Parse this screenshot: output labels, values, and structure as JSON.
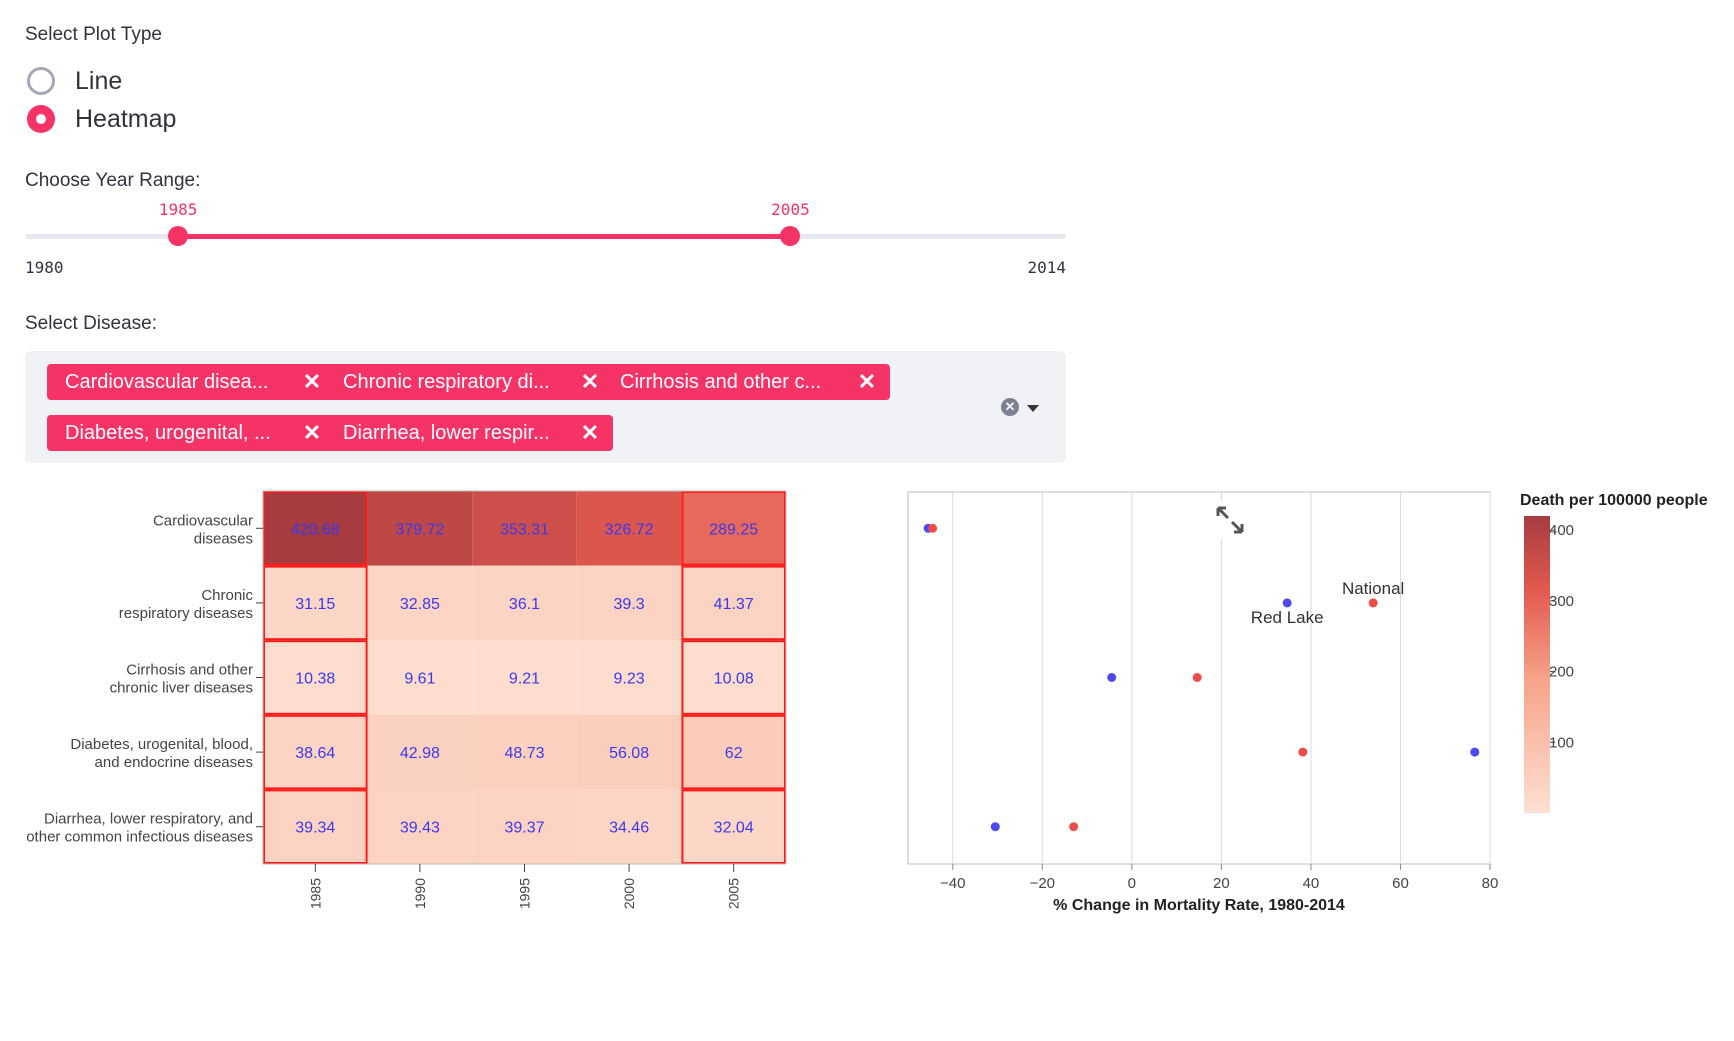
{
  "plot_type": {
    "label": "Select Plot Type",
    "options": [
      "Line",
      "Heatmap"
    ],
    "selected": "Heatmap"
  },
  "year_range": {
    "label": "Choose Year Range:",
    "min": 1980,
    "max": 2014,
    "low": 1985,
    "high": 2005,
    "min_label": "1980",
    "max_label": "2014",
    "low_label": "1985",
    "high_label": "2005"
  },
  "disease_select": {
    "label": "Select Disease:",
    "tags": [
      "Cardiovascular disea...",
      "Chronic respiratory di...",
      "Cirrhosis and other c...",
      "Diabetes, urogenital, ...",
      "Diarrhea, lower respir..."
    ],
    "remove_icon": "close-icon",
    "clear_icon": "clear-all-icon",
    "dropdown_icon": "caret-down-icon"
  },
  "colors": {
    "accent": "#f63366",
    "cell_text": "#3b38f0",
    "highlight_border": "#ff1a1a",
    "red_lake_point": "#4b4bf0",
    "national_point": "#f04b4b"
  },
  "chart_data": [
    {
      "type": "heatmap",
      "y_categories": [
        [
          "Cardiovascular",
          "diseases"
        ],
        [
          "Chronic",
          "respiratory diseases"
        ],
        [
          "Cirrhosis and other",
          "chronic liver diseases"
        ],
        [
          "Diabetes, urogenital, blood,",
          "and endocrine diseases"
        ],
        [
          "Diarrhea, lower respiratory, and",
          "other common infectious diseases"
        ]
      ],
      "x_categories": [
        "1985",
        "1990",
        "1995",
        "2000",
        "2005"
      ],
      "values": [
        [
          420.68,
          379.72,
          353.31,
          326.72,
          289.25
        ],
        [
          31.15,
          32.85,
          36.1,
          39.3,
          41.37
        ],
        [
          10.38,
          9.61,
          9.21,
          9.23,
          10.08
        ],
        [
          38.64,
          42.98,
          48.73,
          56.08,
          62
        ],
        [
          39.34,
          39.43,
          39.37,
          34.46,
          32.04
        ]
      ],
      "highlighted_columns": [
        "1985",
        "2005"
      ],
      "color_scale": [
        "#fde0d2",
        "#a63c40"
      ],
      "colorbar": {
        "title": "Death per 100000 people",
        "range": [
          0,
          420
        ],
        "ticks": [
          100,
          200,
          300,
          400
        ]
      }
    },
    {
      "type": "scatter",
      "xlabel": "% Change in Mortality Rate, 1980-2014",
      "xlim": [
        -50,
        80
      ],
      "x_ticks": [
        -40,
        -20,
        0,
        20,
        40,
        60,
        80
      ],
      "x_tick_labels": [
        "−40",
        "−20",
        "0",
        "20",
        "40",
        "60",
        "80"
      ],
      "grid": true,
      "series": [
        {
          "name": "Red Lake",
          "values": [
            -45.5,
            34.7,
            -4.5,
            76.6,
            -30.5
          ]
        },
        {
          "name": "National",
          "values": [
            -44.5,
            53.9,
            14.6,
            38.2,
            -13.0
          ]
        }
      ],
      "annotations": [
        {
          "text": "National",
          "series": "National",
          "row": 1
        },
        {
          "text": "Red Lake",
          "series": "Red Lake",
          "row": 1
        }
      ],
      "expand_icon": "expand-icon"
    }
  ]
}
